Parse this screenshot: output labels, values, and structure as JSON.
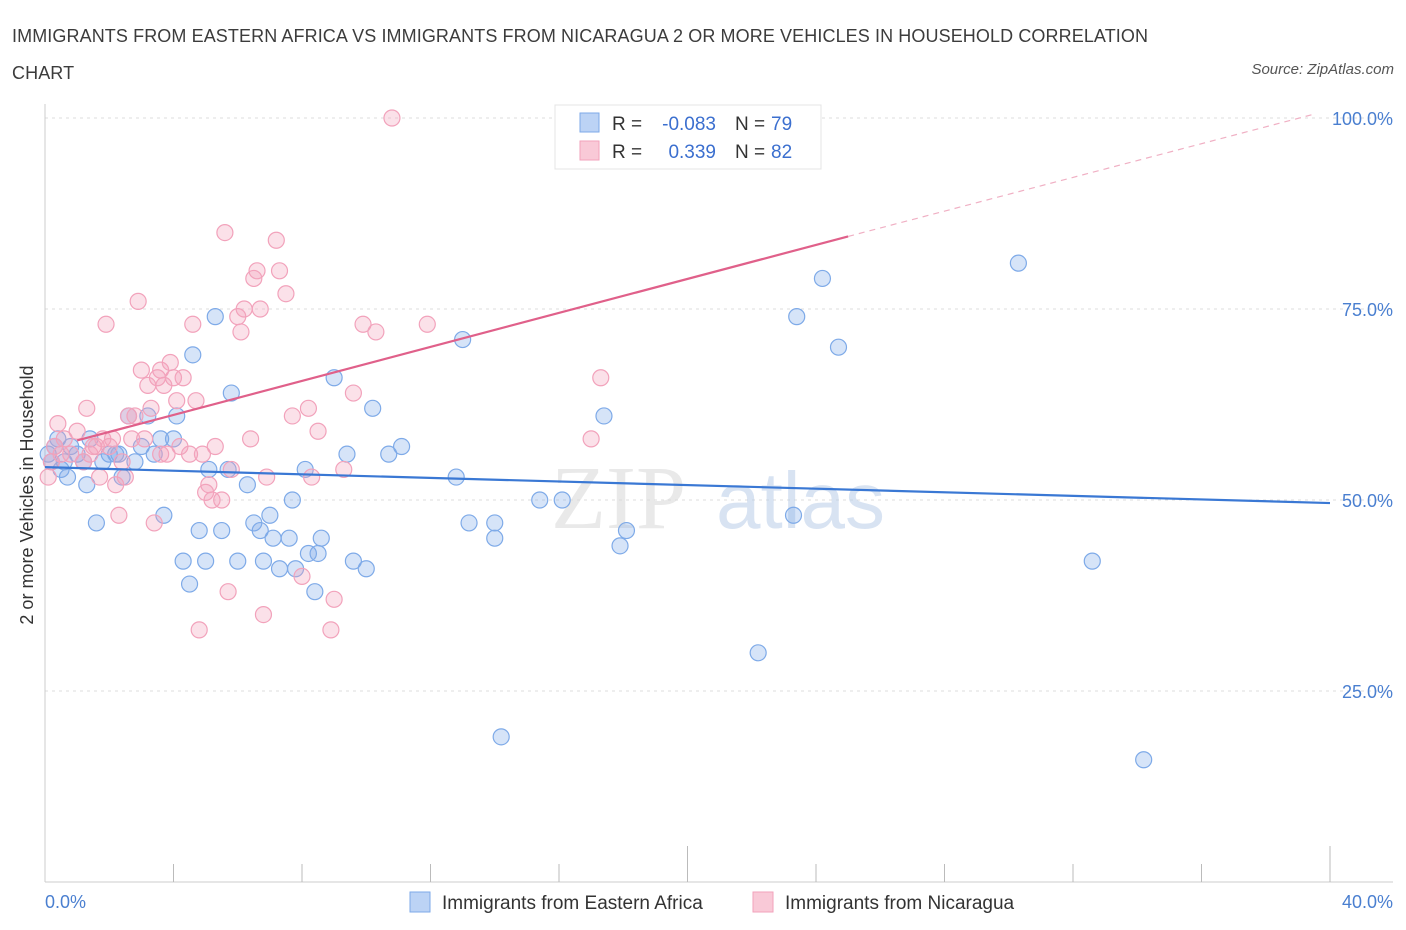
{
  "chart_data": {
    "type": "scatter",
    "title": "IMMIGRANTS FROM EASTERN AFRICA VS IMMIGRANTS FROM NICARAGUA 2 OR MORE VEHICLES IN HOUSEHOLD CORRELATION CHART",
    "source": "Source: ZipAtlas.com",
    "ylabel": "2 or more Vehicles in Household",
    "xlim": [
      0,
      40
    ],
    "ylim": [
      0,
      100
    ],
    "x_tick_labels": [
      "0.0%",
      "40.0%"
    ],
    "y_ticks": [
      25,
      50,
      75,
      100
    ],
    "y_tick_labels": [
      "25.0%",
      "50.0%",
      "75.0%",
      "100.0%"
    ],
    "grid": true,
    "watermark": {
      "zip": "ZIP",
      "atlas": "atlas"
    },
    "legend_stats": [
      {
        "r_label": "R =",
        "r_value": "-0.083",
        "n_label": "N =",
        "n_value": "79"
      },
      {
        "r_label": "R =",
        "r_value": "0.339",
        "n_label": "N =",
        "n_value": "82"
      }
    ],
    "series": [
      {
        "name": "Immigrants from Eastern Africa",
        "color": "#7eaae8",
        "line_color": "#3a78d4",
        "trend": {
          "x": [
            0,
            40
          ],
          "y": [
            54.3,
            49.6
          ]
        },
        "points": [
          [
            0.1,
            56
          ],
          [
            0.2,
            55
          ],
          [
            0.3,
            57
          ],
          [
            0.4,
            58
          ],
          [
            0.5,
            54
          ],
          [
            0.6,
            55
          ],
          [
            0.7,
            53
          ],
          [
            0.8,
            57
          ],
          [
            1.0,
            56
          ],
          [
            1.2,
            55
          ],
          [
            1.3,
            52
          ],
          [
            1.4,
            58
          ],
          [
            1.6,
            47
          ],
          [
            1.8,
            55
          ],
          [
            2.0,
            56
          ],
          [
            2.2,
            56
          ],
          [
            2.3,
            56
          ],
          [
            2.4,
            53
          ],
          [
            2.6,
            61
          ],
          [
            2.8,
            55
          ],
          [
            3.0,
            57
          ],
          [
            3.2,
            61
          ],
          [
            3.4,
            56
          ],
          [
            3.6,
            58
          ],
          [
            3.7,
            48
          ],
          [
            4.0,
            58
          ],
          [
            4.1,
            61
          ],
          [
            4.3,
            42
          ],
          [
            4.5,
            39
          ],
          [
            4.6,
            69
          ],
          [
            4.8,
            46
          ],
          [
            5.0,
            42
          ],
          [
            5.1,
            54
          ],
          [
            5.3,
            74
          ],
          [
            5.5,
            46
          ],
          [
            5.7,
            54
          ],
          [
            5.8,
            64
          ],
          [
            6.0,
            42
          ],
          [
            6.3,
            52
          ],
          [
            6.5,
            47
          ],
          [
            6.7,
            46
          ],
          [
            6.8,
            42
          ],
          [
            7.0,
            48
          ],
          [
            7.1,
            45
          ],
          [
            7.3,
            41
          ],
          [
            7.6,
            45
          ],
          [
            7.7,
            50
          ],
          [
            7.8,
            41
          ],
          [
            8.1,
            54
          ],
          [
            8.2,
            43
          ],
          [
            8.4,
            38
          ],
          [
            8.6,
            45
          ],
          [
            8.5,
            43
          ],
          [
            9.0,
            66
          ],
          [
            9.4,
            56
          ],
          [
            9.6,
            42
          ],
          [
            10.0,
            41
          ],
          [
            10.2,
            62
          ],
          [
            10.7,
            56
          ],
          [
            11.1,
            57
          ],
          [
            12.8,
            53
          ],
          [
            13.0,
            71
          ],
          [
            13.2,
            47
          ],
          [
            14.0,
            47
          ],
          [
            14.0,
            45
          ],
          [
            14.2,
            19
          ],
          [
            15.4,
            50
          ],
          [
            16.1,
            50
          ],
          [
            17.4,
            61
          ],
          [
            17.9,
            44
          ],
          [
            18.1,
            46
          ],
          [
            22.2,
            30
          ],
          [
            23.3,
            48
          ],
          [
            23.4,
            74
          ],
          [
            24.2,
            79
          ],
          [
            24.7,
            70
          ],
          [
            30.3,
            81
          ],
          [
            32.6,
            42
          ],
          [
            34.2,
            16
          ]
        ]
      },
      {
        "name": "Immigrants from Nicaragua",
        "color": "#f2a2bb",
        "line_color": "#e0608a",
        "trend": {
          "x": [
            1.0,
            25.0
          ],
          "y": [
            57.8,
            84.5
          ]
        },
        "trend_dashed": {
          "x": [
            25.0,
            39.5
          ],
          "y": [
            84.5,
            100.5
          ]
        },
        "points": [
          [
            0.1,
            53
          ],
          [
            0.2,
            55
          ],
          [
            0.3,
            57
          ],
          [
            0.4,
            60
          ],
          [
            0.5,
            56
          ],
          [
            0.6,
            58
          ],
          [
            0.8,
            56
          ],
          [
            1.0,
            59
          ],
          [
            1.2,
            55
          ],
          [
            1.3,
            62
          ],
          [
            1.4,
            56
          ],
          [
            1.5,
            57
          ],
          [
            1.7,
            53
          ],
          [
            1.8,
            58
          ],
          [
            1.9,
            73
          ],
          [
            2.0,
            57
          ],
          [
            2.1,
            58
          ],
          [
            2.2,
            52
          ],
          [
            2.3,
            48
          ],
          [
            2.5,
            53
          ],
          [
            2.6,
            61
          ],
          [
            2.7,
            58
          ],
          [
            2.8,
            61
          ],
          [
            2.9,
            76
          ],
          [
            3.0,
            67
          ],
          [
            3.1,
            58
          ],
          [
            3.2,
            65
          ],
          [
            3.3,
            62
          ],
          [
            3.4,
            47
          ],
          [
            3.5,
            66
          ],
          [
            3.6,
            56
          ],
          [
            3.7,
            65
          ],
          [
            3.8,
            56
          ],
          [
            3.9,
            68
          ],
          [
            4.0,
            66
          ],
          [
            4.1,
            63
          ],
          [
            4.3,
            66
          ],
          [
            4.5,
            56
          ],
          [
            4.6,
            73
          ],
          [
            4.7,
            63
          ],
          [
            4.8,
            33
          ],
          [
            4.9,
            56
          ],
          [
            5.0,
            51
          ],
          [
            5.2,
            50
          ],
          [
            5.3,
            57
          ],
          [
            5.5,
            50
          ],
          [
            5.6,
            85
          ],
          [
            5.7,
            38
          ],
          [
            5.8,
            54
          ],
          [
            6.0,
            74
          ],
          [
            6.1,
            72
          ],
          [
            6.2,
            75
          ],
          [
            6.4,
            58
          ],
          [
            6.5,
            79
          ],
          [
            6.6,
            80
          ],
          [
            6.7,
            75
          ],
          [
            6.8,
            35
          ],
          [
            6.9,
            53
          ],
          [
            7.2,
            84
          ],
          [
            7.3,
            80
          ],
          [
            7.5,
            77
          ],
          [
            7.7,
            61
          ],
          [
            8.0,
            40
          ],
          [
            8.2,
            62
          ],
          [
            8.3,
            53
          ],
          [
            8.5,
            59
          ],
          [
            8.9,
            33
          ],
          [
            9.0,
            37
          ],
          [
            9.3,
            54
          ],
          [
            9.6,
            64
          ],
          [
            9.9,
            73
          ],
          [
            10.3,
            72
          ],
          [
            10.8,
            100
          ],
          [
            11.9,
            73
          ],
          [
            17.0,
            58
          ],
          [
            17.3,
            66
          ],
          [
            20.4,
            100
          ],
          [
            1.6,
            57
          ],
          [
            2.4,
            55
          ],
          [
            3.6,
            67
          ],
          [
            4.2,
            57
          ],
          [
            5.1,
            52
          ]
        ]
      }
    ]
  }
}
